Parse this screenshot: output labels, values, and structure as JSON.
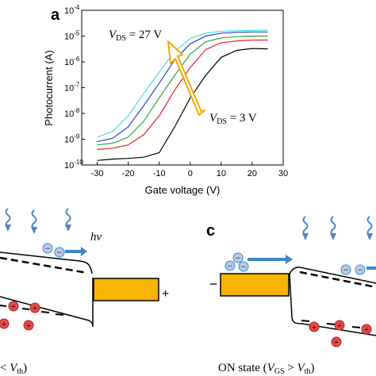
{
  "panels": {
    "a": "a",
    "c": "c"
  },
  "chart_data": {
    "type": "line",
    "xlabel": "Gate voltage (V)",
    "ylabel": "Photocurrent (A)",
    "xlim": [
      -35,
      30
    ],
    "ylim_log10": [
      -10,
      -4
    ],
    "yscale": "log",
    "x_ticks": [
      -30,
      -20,
      -10,
      0,
      10,
      20,
      30
    ],
    "y_ticks": [
      {
        "base": "10",
        "exp": "-4"
      },
      {
        "base": "10",
        "exp": "-5"
      },
      {
        "base": "10",
        "exp": "-6"
      },
      {
        "base": "10",
        "exp": "-7"
      },
      {
        "base": "10",
        "exp": "-8"
      },
      {
        "base": "10",
        "exp": "-9"
      },
      {
        "base": "10",
        "exp": "-10"
      }
    ],
    "x": [
      -30,
      -25,
      -20,
      -15,
      -10,
      -5,
      0,
      5,
      10,
      15,
      20,
      25
    ],
    "series": [
      {
        "color": "#000000",
        "values": [
          1.5e-10,
          1.7e-10,
          1.8e-10,
          2e-10,
          3e-10,
          3e-09,
          4e-08,
          3e-07,
          1.5e-06,
          2.8e-06,
          3.3e-06,
          3.2e-06
        ]
      },
      {
        "color": "#e8231f",
        "values": [
          4e-10,
          4.5e-10,
          6e-10,
          1.5e-09,
          8e-09,
          8e-08,
          6e-07,
          3e-06,
          5.5e-06,
          6.5e-06,
          7e-06,
          7e-06
        ]
      },
      {
        "color": "#2da43a",
        "values": [
          6e-10,
          7e-10,
          1.2e-09,
          5e-09,
          4e-08,
          3e-07,
          2e-06,
          6e-06,
          8.5e-06,
          9.5e-06,
          1e-05,
          1e-05
        ]
      },
      {
        "color": "#2d3fd6",
        "values": [
          8e-10,
          1.1e-09,
          3e-09,
          2e-08,
          1.5e-07,
          1.2e-06,
          5e-06,
          1e-05,
          1.3e-05,
          1.4e-05,
          1.45e-05,
          1.45e-05
        ]
      },
      {
        "color": "#3fe0ec",
        "values": [
          1.2e-09,
          2e-09,
          8e-09,
          6e-08,
          4e-07,
          2.5e-06,
          8e-06,
          1.3e-05,
          1.55e-05,
          1.6e-05,
          1.65e-05,
          1.7e-05
        ]
      }
    ],
    "annotations": {
      "vds_high": {
        "var": "V",
        "sub": "DS",
        "value": " = 27 V"
      },
      "vds_low": {
        "var": "V",
        "sub": "DS",
        "value": " = 3 V"
      }
    }
  },
  "diagram": {
    "photon": "hν",
    "electron_sign": "−",
    "hole_sign": "+",
    "positive_terminal": "+",
    "negative_terminal": "−",
    "off_state": {
      "var": "V",
      "sub": "th",
      "tail": ")",
      "prefix": "< "
    },
    "on_state": {
      "prefix": "ON state (",
      "var1": "V",
      "sub1": "GS",
      "mid": " > ",
      "var2": "V",
      "sub2": "th",
      "tail": ")"
    }
  },
  "colors": {
    "arrow_blue": "#3e86c8",
    "electron_fill": "#b9cbe8",
    "hole_fill": "#e84a4a",
    "gold": "#f7b500",
    "wave_blue": "#4c86c4"
  }
}
